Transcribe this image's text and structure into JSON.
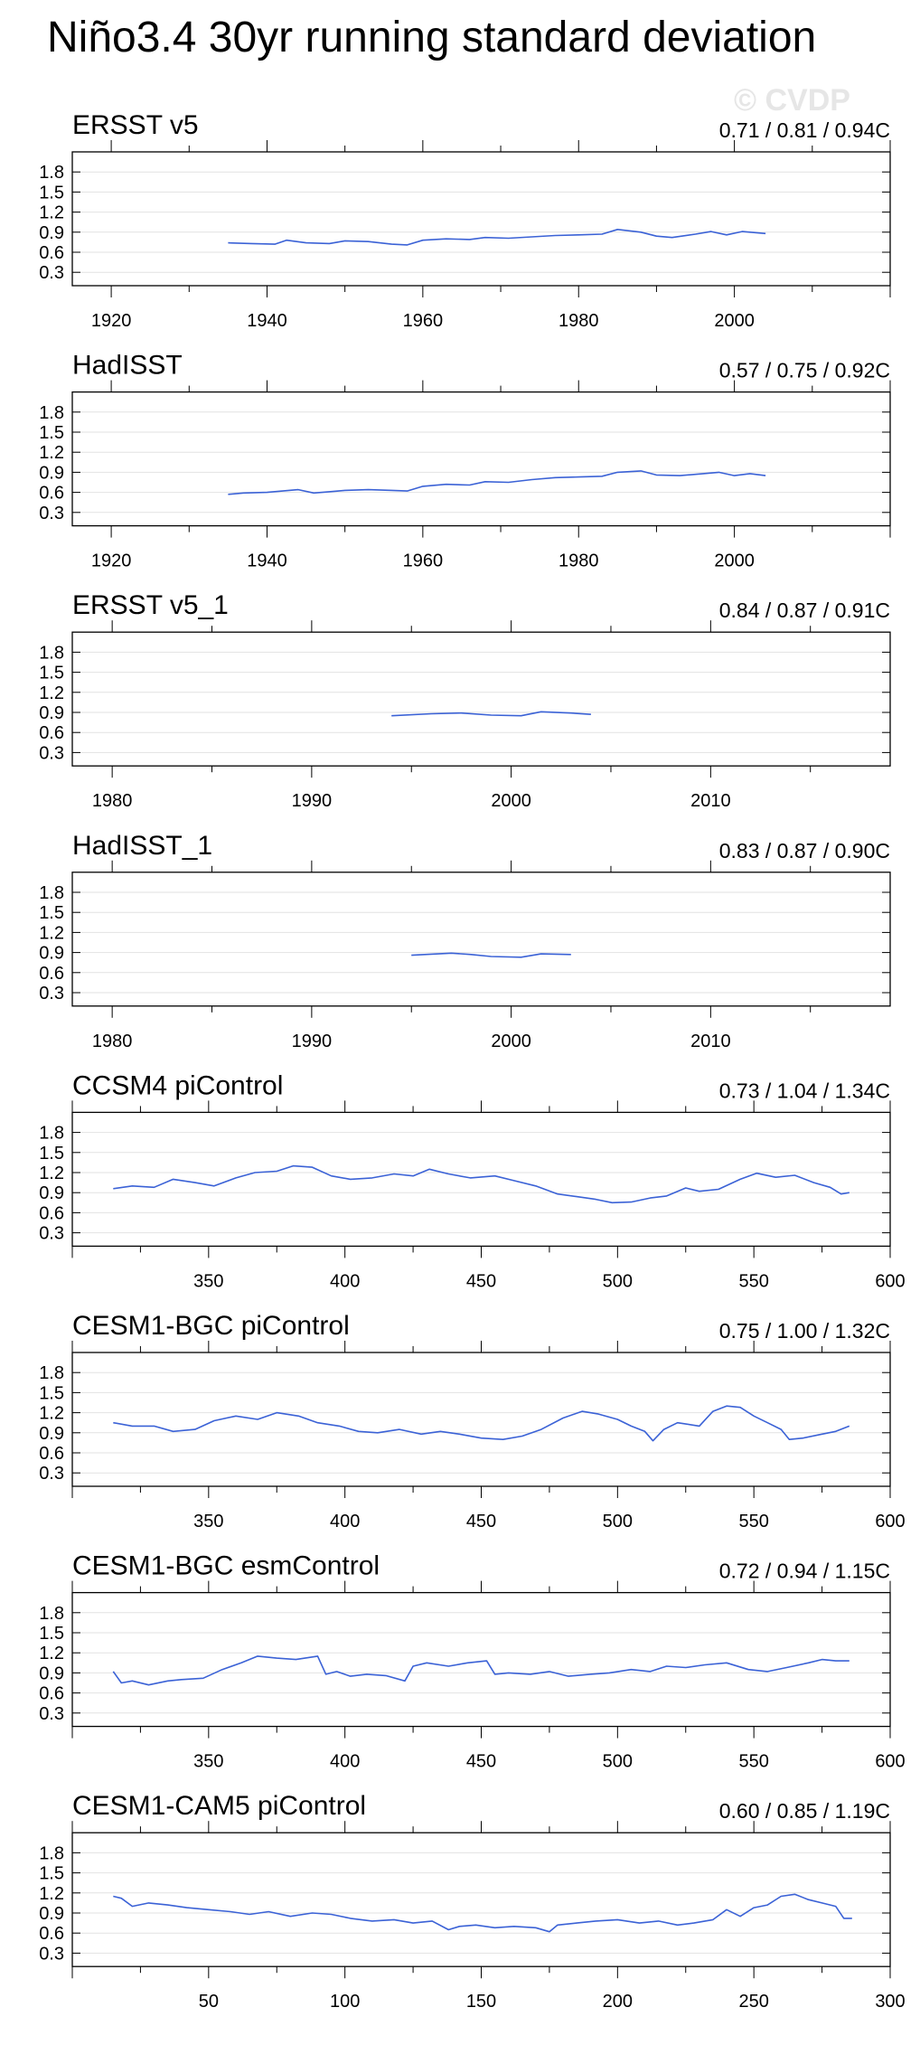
{
  "title": "Niño3.4 30yr running standard deviation",
  "watermark": "© CVDP",
  "colors": {
    "line": "#3b62d6",
    "frame": "#000000",
    "grid": "#e2e2e2"
  },
  "chart_data": [
    {
      "type": "line",
      "label": "ERSST v5",
      "stats": "0.71 / 0.81 / 0.94C",
      "xlim": [
        1915,
        2020
      ],
      "ylim": [
        0.1,
        2.1
      ],
      "xticks": [
        1920,
        1940,
        1960,
        1980,
        2000
      ],
      "yticks": [
        0.3,
        0.6,
        0.9,
        1.2,
        1.5,
        1.8
      ],
      "ytick_labels": [
        "0.3",
        "0.6",
        "0.9",
        "1.2",
        "1.5",
        "1.8"
      ],
      "series": [
        {
          "name": "ERSST v5",
          "x": [
            1935,
            1938,
            1941,
            1942.5,
            1945,
            1948,
            1950,
            1953,
            1956,
            1958,
            1960,
            1963,
            1966,
            1968,
            1971,
            1974,
            1977,
            1980,
            1983,
            1985,
            1988,
            1990,
            1992,
            1995,
            1997,
            1999,
            2001,
            2004
          ],
          "y": [
            0.74,
            0.73,
            0.72,
            0.78,
            0.74,
            0.73,
            0.77,
            0.76,
            0.72,
            0.71,
            0.78,
            0.8,
            0.79,
            0.82,
            0.81,
            0.83,
            0.85,
            0.86,
            0.87,
            0.94,
            0.9,
            0.84,
            0.82,
            0.87,
            0.91,
            0.86,
            0.91,
            0.88
          ]
        }
      ]
    },
    {
      "type": "line",
      "label": "HadISST",
      "stats": "0.57 / 0.75 / 0.92C",
      "xlim": [
        1915,
        2020
      ],
      "ylim": [
        0.1,
        2.1
      ],
      "xticks": [
        1920,
        1940,
        1960,
        1980,
        2000
      ],
      "yticks": [
        0.3,
        0.6,
        0.9,
        1.2,
        1.5,
        1.8
      ],
      "ytick_labels": [
        "0.3",
        "0.6",
        "0.9",
        "1.2",
        "1.5",
        "1.8"
      ],
      "series": [
        {
          "name": "HadISST",
          "x": [
            1935,
            1937,
            1940,
            1942,
            1944,
            1946,
            1948,
            1950,
            1953,
            1956,
            1958,
            1960,
            1963,
            1966,
            1968,
            1971,
            1974,
            1977,
            1980,
            1983,
            1985,
            1988,
            1990,
            1993,
            1996,
            1998,
            2000,
            2002,
            2004
          ],
          "y": [
            0.57,
            0.59,
            0.6,
            0.62,
            0.64,
            0.59,
            0.61,
            0.63,
            0.64,
            0.63,
            0.62,
            0.69,
            0.72,
            0.71,
            0.76,
            0.75,
            0.79,
            0.82,
            0.83,
            0.84,
            0.9,
            0.92,
            0.86,
            0.85,
            0.88,
            0.9,
            0.85,
            0.88,
            0.85
          ]
        }
      ]
    },
    {
      "type": "line",
      "label": "ERSST v5_1",
      "stats": "0.84 / 0.87 / 0.91C",
      "xlim": [
        1978,
        2019
      ],
      "ylim": [
        0.1,
        2.1
      ],
      "xticks": [
        1980,
        1990,
        2000,
        2010
      ],
      "yticks": [
        0.3,
        0.6,
        0.9,
        1.2,
        1.5,
        1.8
      ],
      "ytick_labels": [
        "0.3",
        "0.6",
        "0.9",
        "1.2",
        "1.5",
        "1.8"
      ],
      "series": [
        {
          "name": "ERSST v5_1",
          "x": [
            1994,
            1996,
            1997.5,
            1999,
            2000.5,
            2001.5,
            2003,
            2004
          ],
          "y": [
            0.85,
            0.88,
            0.89,
            0.86,
            0.85,
            0.91,
            0.89,
            0.87
          ]
        }
      ]
    },
    {
      "type": "line",
      "label": "HadISST_1",
      "stats": "0.83 / 0.87 / 0.90C",
      "xlim": [
        1978,
        2019
      ],
      "ylim": [
        0.1,
        2.1
      ],
      "xticks": [
        1980,
        1990,
        2000,
        2010
      ],
      "yticks": [
        0.3,
        0.6,
        0.9,
        1.2,
        1.5,
        1.8
      ],
      "ytick_labels": [
        "0.3",
        "0.6",
        "0.9",
        "1.2",
        "1.5",
        "1.8"
      ],
      "series": [
        {
          "name": "HadISST_1",
          "x": [
            1995,
            1997,
            1998,
            1999,
            2000.5,
            2001.5,
            2003
          ],
          "y": [
            0.86,
            0.89,
            0.87,
            0.84,
            0.83,
            0.88,
            0.87
          ]
        }
      ]
    },
    {
      "type": "line",
      "label": "CCSM4 piControl",
      "stats": "0.73 / 1.04 / 1.34C",
      "xlim": [
        300,
        600
      ],
      "ylim": [
        0.1,
        2.1
      ],
      "xticks": [
        350,
        400,
        450,
        500,
        550,
        600
      ],
      "yticks": [
        0.3,
        0.6,
        0.9,
        1.2,
        1.5,
        1.8
      ],
      "ytick_labels": [
        "0.3",
        "0.6",
        "0.9",
        "1.2",
        "1.5",
        "1.8"
      ],
      "series": [
        {
          "name": "CCSM4 piControl",
          "x": [
            315,
            322,
            330,
            337,
            345,
            352,
            360,
            367,
            375,
            381,
            388,
            395,
            402,
            410,
            418,
            425,
            431,
            438,
            446,
            455,
            462,
            470,
            478,
            485,
            492,
            498,
            505,
            512,
            518,
            525,
            530,
            537,
            545,
            551,
            558,
            565,
            572,
            578,
            582,
            585
          ],
          "y": [
            0.96,
            1.0,
            0.98,
            1.1,
            1.05,
            1.0,
            1.12,
            1.2,
            1.22,
            1.3,
            1.28,
            1.15,
            1.1,
            1.12,
            1.18,
            1.15,
            1.25,
            1.18,
            1.12,
            1.15,
            1.08,
            1.0,
            0.88,
            0.84,
            0.8,
            0.75,
            0.76,
            0.82,
            0.85,
            0.97,
            0.92,
            0.95,
            1.1,
            1.19,
            1.13,
            1.16,
            1.05,
            0.98,
            0.88,
            0.9
          ]
        }
      ]
    },
    {
      "type": "line",
      "label": "CESM1-BGC piControl",
      "stats": "0.75 / 1.00 / 1.32C",
      "xlim": [
        300,
        600
      ],
      "ylim": [
        0.1,
        2.1
      ],
      "xticks": [
        350,
        400,
        450,
        500,
        550,
        600
      ],
      "yticks": [
        0.3,
        0.6,
        0.9,
        1.2,
        1.5,
        1.8
      ],
      "ytick_labels": [
        "0.3",
        "0.6",
        "0.9",
        "1.2",
        "1.5",
        "1.8"
      ],
      "series": [
        {
          "name": "CESM1-BGC piControl",
          "x": [
            315,
            322,
            330,
            337,
            345,
            352,
            360,
            368,
            375,
            383,
            390,
            398,
            405,
            412,
            420,
            428,
            435,
            442,
            450,
            458,
            465,
            472,
            480,
            487,
            493,
            500,
            505,
            510,
            513,
            517,
            522,
            530,
            535,
            540,
            545,
            550,
            555,
            560,
            563,
            568,
            575,
            580,
            585
          ],
          "y": [
            1.05,
            1.0,
            1.0,
            0.92,
            0.95,
            1.08,
            1.15,
            1.1,
            1.2,
            1.15,
            1.05,
            1.0,
            0.92,
            0.9,
            0.95,
            0.88,
            0.92,
            0.88,
            0.82,
            0.8,
            0.85,
            0.95,
            1.12,
            1.22,
            1.18,
            1.1,
            1.0,
            0.92,
            0.78,
            0.95,
            1.05,
            1.0,
            1.22,
            1.3,
            1.28,
            1.15,
            1.05,
            0.95,
            0.8,
            0.82,
            0.88,
            0.92,
            1.0
          ]
        }
      ]
    },
    {
      "type": "line",
      "label": "CESM1-BGC esmControl",
      "stats": "0.72 / 0.94 / 1.15C",
      "xlim": [
        300,
        600
      ],
      "ylim": [
        0.1,
        2.1
      ],
      "xticks": [
        350,
        400,
        450,
        500,
        550,
        600
      ],
      "yticks": [
        0.3,
        0.6,
        0.9,
        1.2,
        1.5,
        1.8
      ],
      "ytick_labels": [
        "0.3",
        "0.6",
        "0.9",
        "1.2",
        "1.5",
        "1.8"
      ],
      "series": [
        {
          "name": "CESM1-BGC esmControl",
          "x": [
            315,
            318,
            322,
            328,
            335,
            340,
            348,
            355,
            362,
            368,
            375,
            382,
            390,
            393,
            397,
            402,
            408,
            415,
            422,
            425,
            430,
            438,
            445,
            452,
            455,
            460,
            468,
            475,
            482,
            490,
            497,
            505,
            512,
            518,
            525,
            532,
            540,
            548,
            555,
            562,
            570,
            575,
            580,
            585
          ],
          "y": [
            0.92,
            0.75,
            0.78,
            0.72,
            0.78,
            0.8,
            0.82,
            0.95,
            1.05,
            1.15,
            1.12,
            1.1,
            1.15,
            0.88,
            0.92,
            0.85,
            0.88,
            0.86,
            0.78,
            1.0,
            1.05,
            1.0,
            1.05,
            1.08,
            0.88,
            0.9,
            0.88,
            0.92,
            0.85,
            0.88,
            0.9,
            0.95,
            0.92,
            1.0,
            0.98,
            1.02,
            1.05,
            0.95,
            0.92,
            0.98,
            1.05,
            1.1,
            1.08,
            1.08
          ]
        }
      ]
    },
    {
      "type": "line",
      "label": "CESM1-CAM5 piControl",
      "stats": "0.60 / 0.85 / 1.19C",
      "xlim": [
        0,
        300
      ],
      "ylim": [
        0.1,
        2.1
      ],
      "xticks": [
        50,
        100,
        150,
        200,
        250,
        300
      ],
      "yticks": [
        0.3,
        0.6,
        0.9,
        1.2,
        1.5,
        1.8
      ],
      "ytick_labels": [
        "0.3",
        "0.6",
        "0.9",
        "1.2",
        "1.5",
        "1.8"
      ],
      "series": [
        {
          "name": "CESM1-CAM5 piControl",
          "x": [
            15,
            18,
            22,
            28,
            35,
            42,
            50,
            58,
            65,
            72,
            80,
            88,
            95,
            102,
            110,
            118,
            125,
            132,
            138,
            142,
            148,
            155,
            162,
            170,
            175,
            178,
            185,
            192,
            200,
            208,
            215,
            222,
            228,
            235,
            240,
            245,
            250,
            255,
            260,
            265,
            270,
            275,
            280,
            283,
            286
          ],
          "y": [
            1.15,
            1.12,
            1.0,
            1.05,
            1.02,
            0.98,
            0.95,
            0.92,
            0.88,
            0.92,
            0.85,
            0.9,
            0.88,
            0.82,
            0.78,
            0.8,
            0.75,
            0.78,
            0.65,
            0.7,
            0.72,
            0.68,
            0.7,
            0.68,
            0.62,
            0.72,
            0.75,
            0.78,
            0.8,
            0.75,
            0.78,
            0.72,
            0.75,
            0.8,
            0.95,
            0.85,
            0.98,
            1.02,
            1.15,
            1.18,
            1.1,
            1.05,
            1.0,
            0.82,
            0.82
          ]
        }
      ]
    }
  ]
}
